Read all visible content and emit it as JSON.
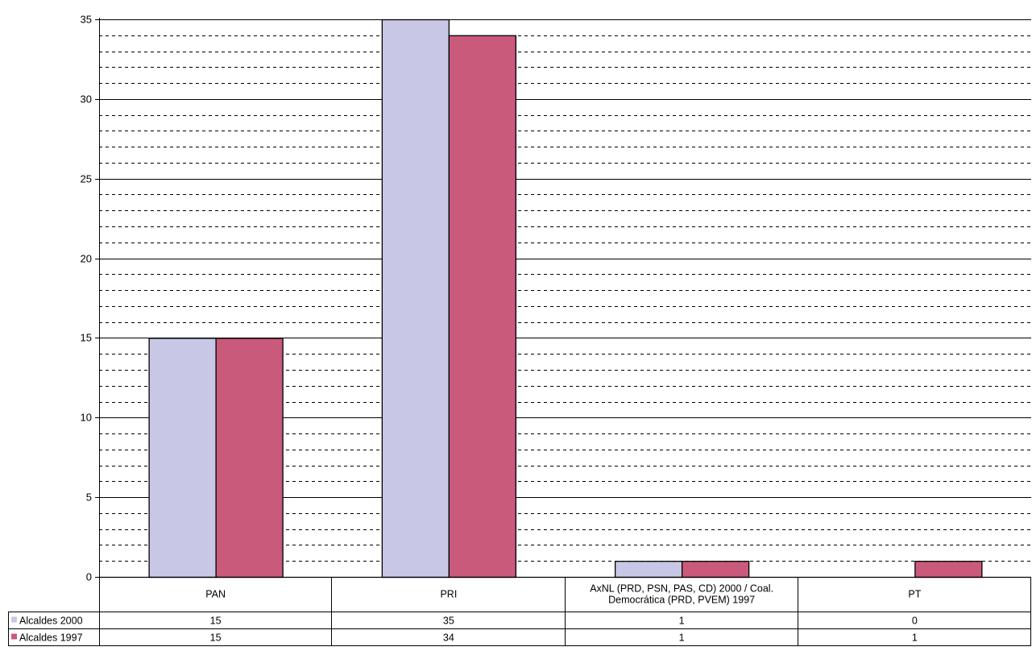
{
  "chart_data": {
    "type": "bar",
    "categories": [
      "PAN",
      "PRI",
      "AxNL (PRD, PSN, PAS, CD) 2000 / Coal.\nDemocrática (PRD, PVEM) 1997",
      "PT"
    ],
    "series": [
      {
        "name": "Alcaldes 2000",
        "values": [
          15,
          35,
          1,
          0
        ],
        "color": "#c8c8e6"
      },
      {
        "name": "Alcaldes 1997",
        "values": [
          15,
          34,
          1,
          1
        ],
        "color": "#c95a7c"
      }
    ],
    "ylim": [
      0,
      35
    ],
    "y_ticks": [
      0,
      5,
      10,
      15,
      20,
      25,
      30,
      35
    ],
    "y_minor_step": 1,
    "grid": true,
    "legend": "data-table-left",
    "table_values": [
      [
        "15",
        "35",
        "1",
        "0"
      ],
      [
        "15",
        "34",
        "1",
        "1"
      ]
    ]
  }
}
